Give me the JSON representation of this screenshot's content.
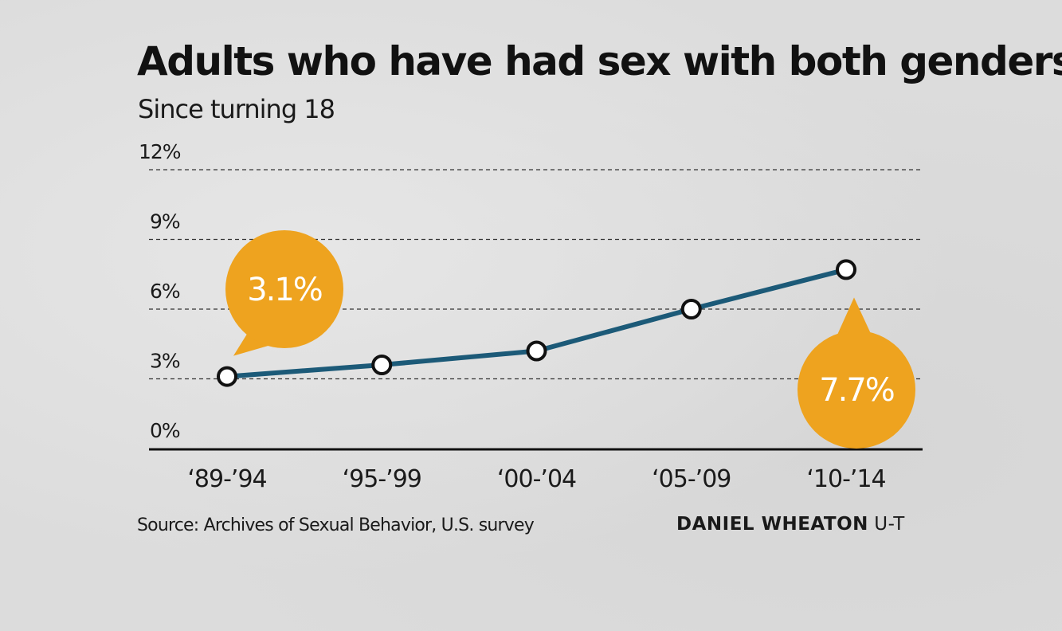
{
  "title": "Adults who have had sex with both genders",
  "subtitle": "Since turning 18",
  "source": "Source: Archives of Sexual Behavior, U.S. survey",
  "credit": {
    "name": "DANIEL WHEATON",
    "org": "U-T"
  },
  "colors": {
    "line": "#1c5a78",
    "callout": "#eea31f",
    "background": "#dcdcdc"
  },
  "chart_data": {
    "type": "line",
    "categories": [
      "‘89-’94",
      "‘95-’99",
      "‘00-’04",
      "‘05-’09",
      "‘10-’14"
    ],
    "values": [
      3.1,
      3.6,
      4.2,
      6.0,
      7.7
    ],
    "ylim": [
      0,
      12
    ],
    "yticks": [
      0,
      3,
      6,
      9,
      12
    ],
    "ytick_labels": [
      "0%",
      "3%",
      "6%",
      "9%",
      "12%"
    ],
    "grid": true,
    "annotations": [
      {
        "index": 0,
        "text": "3.1%",
        "position": "above"
      },
      {
        "index": 4,
        "text": "7.7%",
        "position": "below"
      }
    ]
  }
}
